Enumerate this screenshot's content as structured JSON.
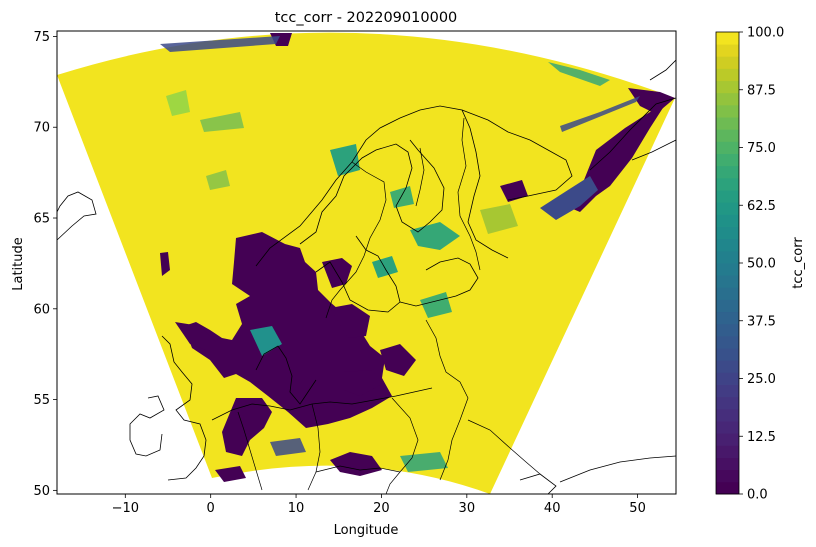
{
  "title": "tcc_corr - 202209010000",
  "map": {
    "xlabel": "Longitude",
    "ylabel": "Latitude",
    "xlim": [
      -18,
      54.5
    ],
    "ylim": [
      49.8,
      75.3
    ],
    "xticks": [
      -10,
      0,
      10,
      20,
      30,
      40,
      50
    ],
    "yticks": [
      50,
      55,
      60,
      65,
      70,
      75
    ],
    "xtick_labels": [
      "−10",
      "0",
      "10",
      "20",
      "30",
      "40",
      "50"
    ],
    "ytick_labels": [
      "50",
      "55",
      "60",
      "65",
      "70",
      "75"
    ],
    "domain_fill": "#f2e41f",
    "coastline_color": "#000000"
  },
  "colorbar": {
    "label": "tcc_corr",
    "min": 0,
    "max": 100,
    "tick_values": [
      0,
      12.5,
      25,
      37.5,
      50,
      62.5,
      75,
      87.5,
      100
    ],
    "tick_labels": [
      "0.0",
      "12.5",
      "25.0",
      "37.5",
      "50.0",
      "62.5",
      "75.0",
      "87.5",
      "100.0"
    ],
    "colors": [
      "#440154",
      "#46085c",
      "#471063",
      "#48186a",
      "#482071",
      "#472777",
      "#462e7c",
      "#443580",
      "#423c84",
      "#3f4387",
      "#3c4a89",
      "#38518b",
      "#35578c",
      "#325d8d",
      "#2f638e",
      "#2c698e",
      "#296f8e",
      "#27758e",
      "#247b8e",
      "#22808d",
      "#20868c",
      "#1f8c8a",
      "#1f9188",
      "#219785",
      "#259c81",
      "#2ca27c",
      "#35a776",
      "#40ad6f",
      "#4eb266",
      "#5db65d",
      "#6ebb53",
      "#80c048",
      "#93c33d",
      "#a7c732",
      "#bbca28",
      "#cfcd22",
      "#e2d51f",
      "#f2e41f"
    ]
  },
  "clear_color": "#440154",
  "mid_color": "#2ca27c"
}
